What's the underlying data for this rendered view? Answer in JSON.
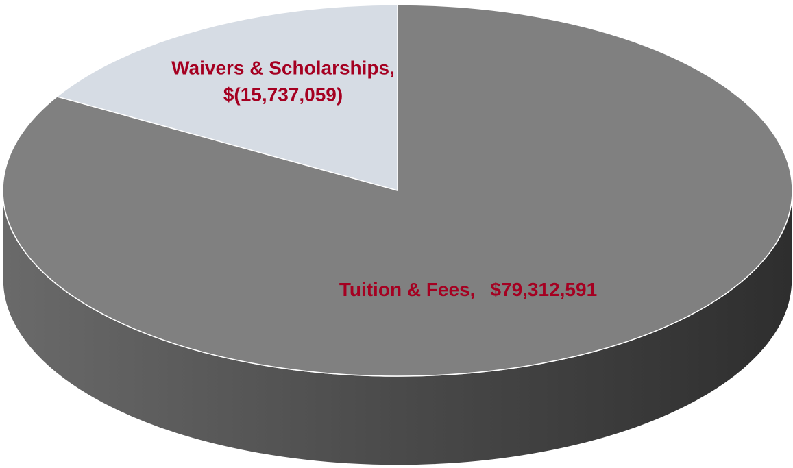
{
  "chart_data": {
    "type": "pie",
    "categories": [
      "Tuition & Fees,",
      "Waivers & Scholarships,"
    ],
    "values": [
      79312591,
      -15737059
    ],
    "value_labels": [
      "$79,312,591",
      "$(15,737,059)"
    ],
    "colors": [
      "#808080",
      "#d6dce4"
    ],
    "label_color": "#a50021"
  }
}
